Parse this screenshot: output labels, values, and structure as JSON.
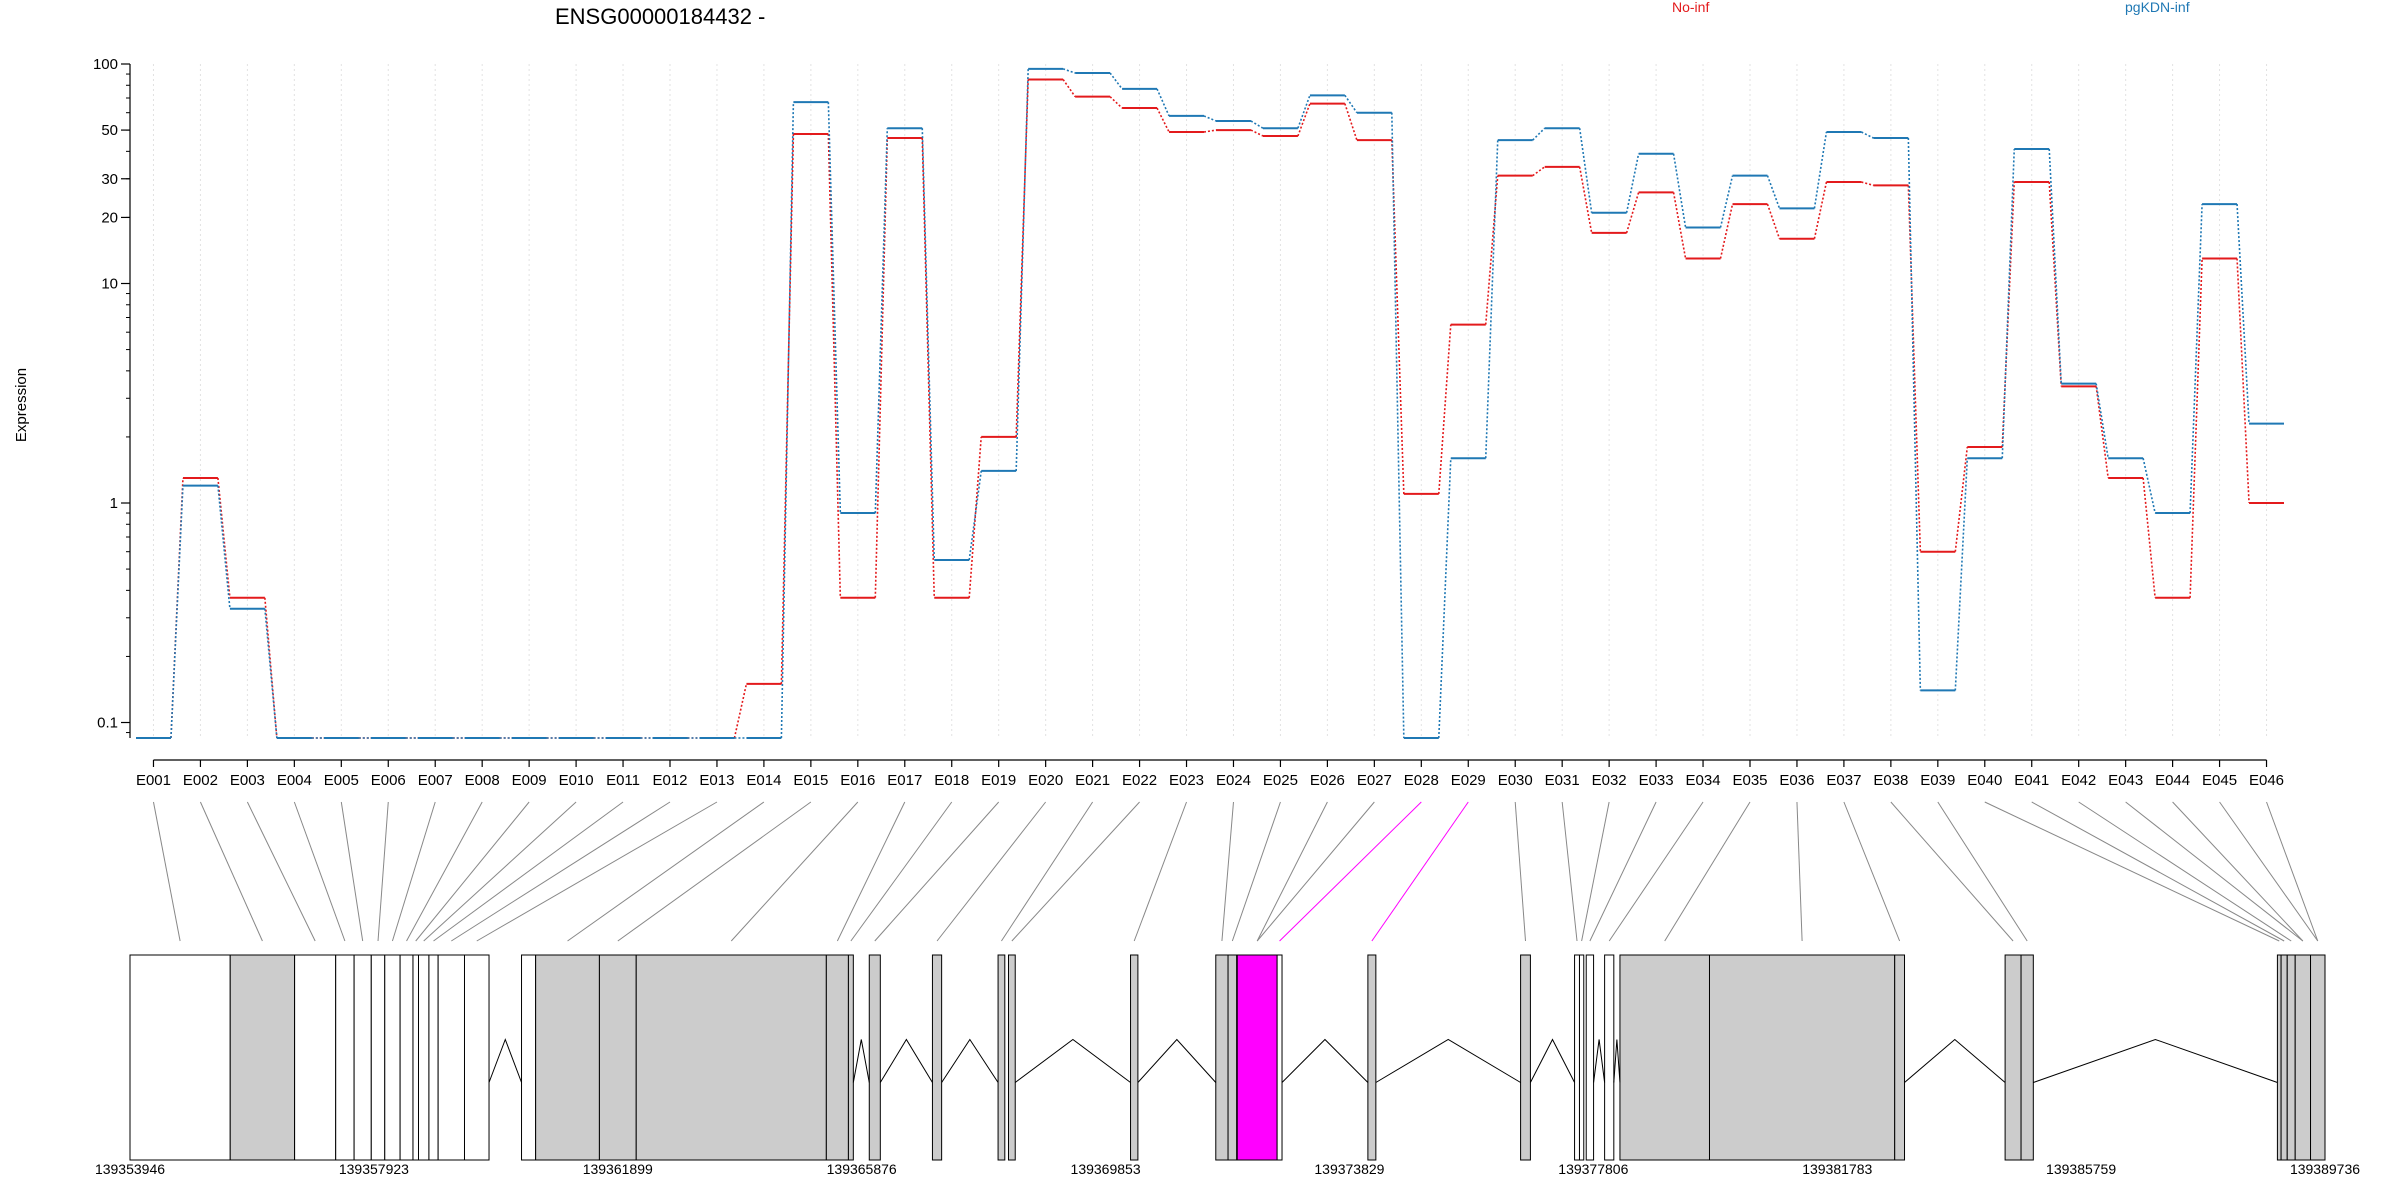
{
  "chart_data": {
    "type": "line",
    "title": "ENSG00000184432 -",
    "ylabel": "Expression",
    "xlabel": "",
    "y_scale": "log",
    "ylim": [
      0.085,
      100
    ],
    "yticks": [
      {
        "value": 100,
        "label": "100"
      },
      {
        "value": 50,
        "label": "50"
      },
      {
        "value": 30,
        "label": "30"
      },
      {
        "value": 20,
        "label": "20"
      },
      {
        "value": 10,
        "label": "10"
      },
      {
        "value": 1,
        "label": "1"
      },
      {
        "value": 0.1,
        "label": "0.1"
      }
    ],
    "grid": "vertical dotted lines at each exon",
    "legend_placement": "top",
    "categories": [
      "E001",
      "E002",
      "E003",
      "E004",
      "E005",
      "E006",
      "E007",
      "E008",
      "E009",
      "E010",
      "E011",
      "E012",
      "E013",
      "E014",
      "E015",
      "E016",
      "E017",
      "E018",
      "E019",
      "E020",
      "E021",
      "E022",
      "E023",
      "E024",
      "E025",
      "E026",
      "E027",
      "E028",
      "E029",
      "E030",
      "E031",
      "E032",
      "E033",
      "E034",
      "E035",
      "E036",
      "E037",
      "E038",
      "E039",
      "E040",
      "E041",
      "E042",
      "E043",
      "E044",
      "E045",
      "E046"
    ],
    "series": [
      {
        "name": "No-inf",
        "color": "#e31a1c",
        "values": [
          0.085,
          1.3,
          0.37,
          0.085,
          0.085,
          0.085,
          0.085,
          0.085,
          0.085,
          0.085,
          0.085,
          0.085,
          0.085,
          0.15,
          48,
          0.37,
          46,
          0.37,
          2.0,
          85,
          71,
          63,
          49,
          50,
          47,
          66,
          45,
          1.1,
          6.5,
          31,
          34,
          17,
          26,
          13,
          23,
          16,
          29,
          28,
          0.6,
          1.8,
          29,
          3.4,
          1.3,
          0.37,
          13,
          1.0
        ]
      },
      {
        "name": "pgKDN-inf",
        "color": "#1f78b4",
        "values": [
          0.085,
          1.2,
          0.33,
          0.085,
          0.085,
          0.085,
          0.085,
          0.085,
          0.085,
          0.085,
          0.085,
          0.085,
          0.085,
          0.085,
          67,
          0.9,
          51,
          0.55,
          1.4,
          95,
          91,
          77,
          58,
          55,
          51,
          72,
          60,
          0.085,
          1.6,
          45,
          51,
          21,
          39,
          18,
          31,
          22,
          49,
          46,
          0.14,
          1.6,
          41,
          3.5,
          1.6,
          0.9,
          23,
          2.3
        ]
      }
    ],
    "genomic_axis": {
      "labels": [
        "139353946",
        "139357923",
        "139361899",
        "139365876",
        "139369853",
        "139373829",
        "139377806",
        "139381783",
        "139385759",
        "139389736"
      ]
    },
    "highlighted_exons": [
      "E028",
      "E029"
    ],
    "highlight_color": "#ff00ff"
  }
}
